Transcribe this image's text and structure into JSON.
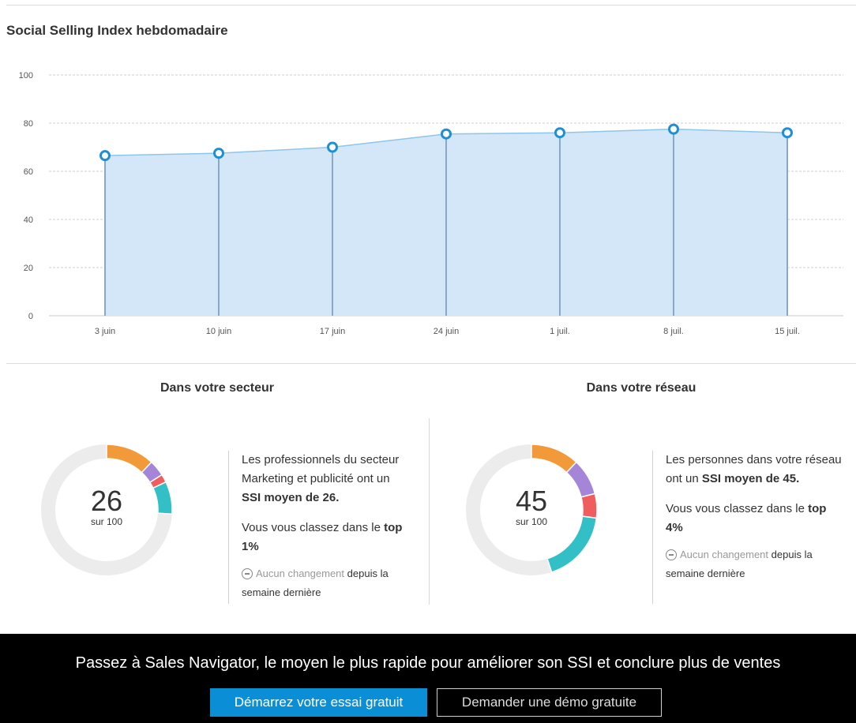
{
  "header": {
    "title": "Social Selling Index hebdomadaire"
  },
  "chart_data": {
    "type": "area",
    "title": "Social Selling Index hebdomadaire",
    "categories": [
      "3 juin",
      "10 juin",
      "17 juin",
      "24 juin",
      "1 juil.",
      "8 juil.",
      "15 juil."
    ],
    "series": [
      {
        "values": [
          66.5,
          67.5,
          70,
          75.5,
          76,
          77.5,
          76
        ]
      }
    ],
    "ylim": [
      0,
      100
    ],
    "yticks": [
      0,
      20,
      40,
      60,
      80,
      100
    ],
    "grid": true,
    "colors": {
      "line": "#8ec5ea",
      "fill": "#d4e7f8",
      "marker": "#1e8fd6",
      "stem": "#8aa8c4"
    }
  },
  "sector": {
    "title": "Dans votre secteur",
    "score": "26",
    "score_sub": "sur 100",
    "score_value": 26,
    "segments": [
      {
        "value": 12,
        "color": "#f29a3a"
      },
      {
        "value": 4,
        "color": "#a585d8"
      },
      {
        "value": 2,
        "color": "#ef5d5d"
      },
      {
        "value": 8,
        "color": "#33bfc6"
      }
    ],
    "desc_prefix": "Les professionnels du secteur Marketing et publicité ont un ",
    "desc_bold": "SSI moyen de 26.",
    "rank_prefix": "Vous vous classez dans le ",
    "rank_bold": "top 1%",
    "change_muted": "Aucun changement",
    "change_bold": " depuis la",
    "change_rest": "semaine dernière"
  },
  "network": {
    "title": "Dans votre réseau",
    "score": "45",
    "score_sub": "sur 100",
    "score_value": 45,
    "segments": [
      {
        "value": 12,
        "color": "#f29a3a"
      },
      {
        "value": 9,
        "color": "#a585d8"
      },
      {
        "value": 6,
        "color": "#ef5d5d"
      },
      {
        "value": 18,
        "color": "#33bfc6"
      }
    ],
    "desc_prefix": "Les personnes dans votre réseau ont un ",
    "desc_bold": "SSI moyen de 45.",
    "rank_prefix": "Vous vous classez dans le ",
    "rank_bold": "top 4%",
    "change_muted": "Aucun changement",
    "change_bold": " depuis la",
    "change_rest": "semaine dernière"
  },
  "donut_colors": {
    "track": "#ececec"
  },
  "footer": {
    "text": "Passez à Sales Navigator, le moyen le plus rapide pour améliorer son SSI et conclure plus de ventes",
    "primary_button": "Démarrez votre essai gratuit",
    "secondary_button": "Demander une démo gratuite"
  }
}
